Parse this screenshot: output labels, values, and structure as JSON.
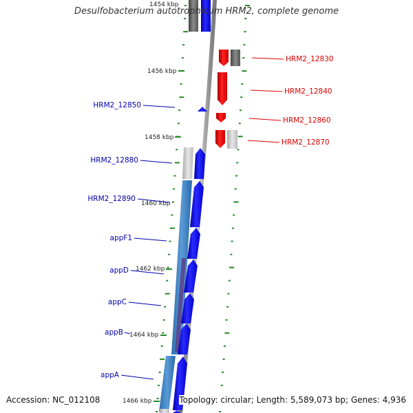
{
  "title": "Desulfobacterium autotrophicum HRM2, complete genome",
  "footer": {
    "accession": "Accession: NC_012108",
    "topology": "Topology: circular; Length: 5,589,073 bp; Genes: 4,936"
  },
  "colors": {
    "reverse_label": "#0000aa",
    "forward_label": "#dd0000",
    "reverse_gene": "#0000ee",
    "forward_gene": "#ee0000",
    "tick": "#228822",
    "backbone": "#888888"
  },
  "scale_labels": [
    "1454 kbp",
    "1456 kbp",
    "1458 kbp",
    "1460 kbp",
    "1462 kbp",
    "1464 kbp",
    "1466 kbp"
  ],
  "reverse_genes": [
    "HRM2_12850",
    "HRM2_12880",
    "HRM2_12890",
    "appF1",
    "appD",
    "appC",
    "appB",
    "appA"
  ],
  "forward_genes": [
    "HRM2_12830",
    "HRM2_12840",
    "HRM2_12860",
    "HRM2_12870"
  ]
}
